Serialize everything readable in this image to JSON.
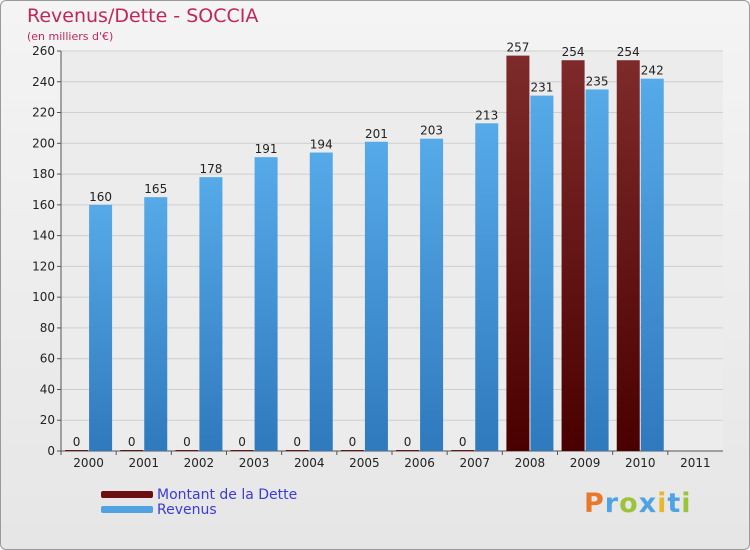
{
  "header": {
    "title": "Revenus/Dette - SOCCIA",
    "subtitle": "(en milliers d'€)"
  },
  "legend": {
    "items": [
      {
        "label": "Montant de la Dette",
        "color": "#6b0f12"
      },
      {
        "label": "Revenus",
        "color": "#4fa3e3"
      }
    ]
  },
  "logo": {
    "text": "Proxiti",
    "letters": [
      "P",
      "r",
      "o",
      "x",
      "i",
      "t",
      "i"
    ],
    "colors": [
      "#e8792c",
      "#4fa3e3",
      "#9bc43c",
      "#4fa3e3",
      "#e8b82c",
      "#4fa3e3",
      "#9bc43c"
    ]
  },
  "chart_data": {
    "type": "bar",
    "title": "Revenus/Dette - SOCCIA",
    "subtitle": "(en milliers d'€)",
    "categories": [
      "2000",
      "2001",
      "2002",
      "2003",
      "2004",
      "2005",
      "2006",
      "2007",
      "2008",
      "2009",
      "2010",
      "2011"
    ],
    "series": [
      {
        "name": "Montant de la Dette",
        "color": "#6b0f12",
        "values": [
          0,
          0,
          0,
          0,
          0,
          0,
          0,
          0,
          257,
          254,
          254,
          null
        ]
      },
      {
        "name": "Revenus",
        "color": "#4fa3e3",
        "values": [
          160,
          165,
          178,
          191,
          194,
          201,
          203,
          213,
          231,
          235,
          242,
          null
        ]
      }
    ],
    "yticks": [
      0,
      20,
      40,
      60,
      80,
      100,
      120,
      140,
      160,
      180,
      200,
      220,
      240,
      260
    ],
    "ylim": [
      0,
      260
    ],
    "grid": true,
    "legend_position": "bottom-left"
  }
}
